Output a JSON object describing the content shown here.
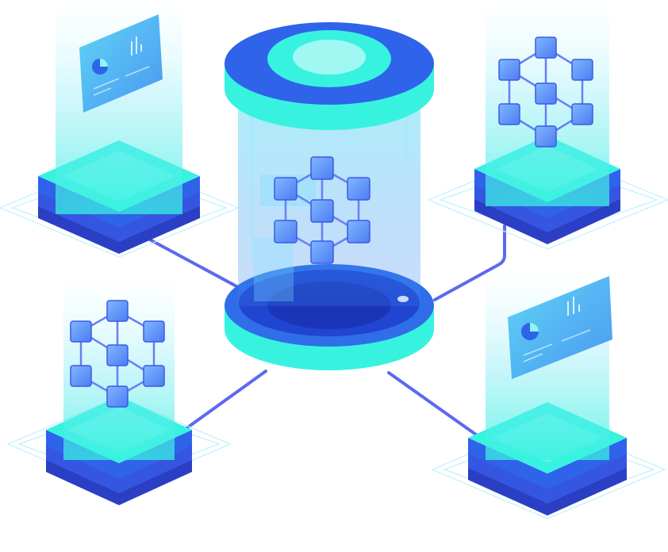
{
  "illustration": {
    "subject": "",
    "colors": {
      "cyan": "#38f2e0",
      "cyan_light": "#8ff7ee",
      "blue": "#2f6ee8",
      "blue_dark": "#1f3fc8",
      "indigo": "#3b4fe0",
      "violet_link": "#6a6ff0",
      "outline": "#bfefff"
    },
    "icons": [
      "database-cylinder-icon",
      "hexagon-network-icon",
      "chart-card-icon",
      "server-stack-icon"
    ]
  }
}
